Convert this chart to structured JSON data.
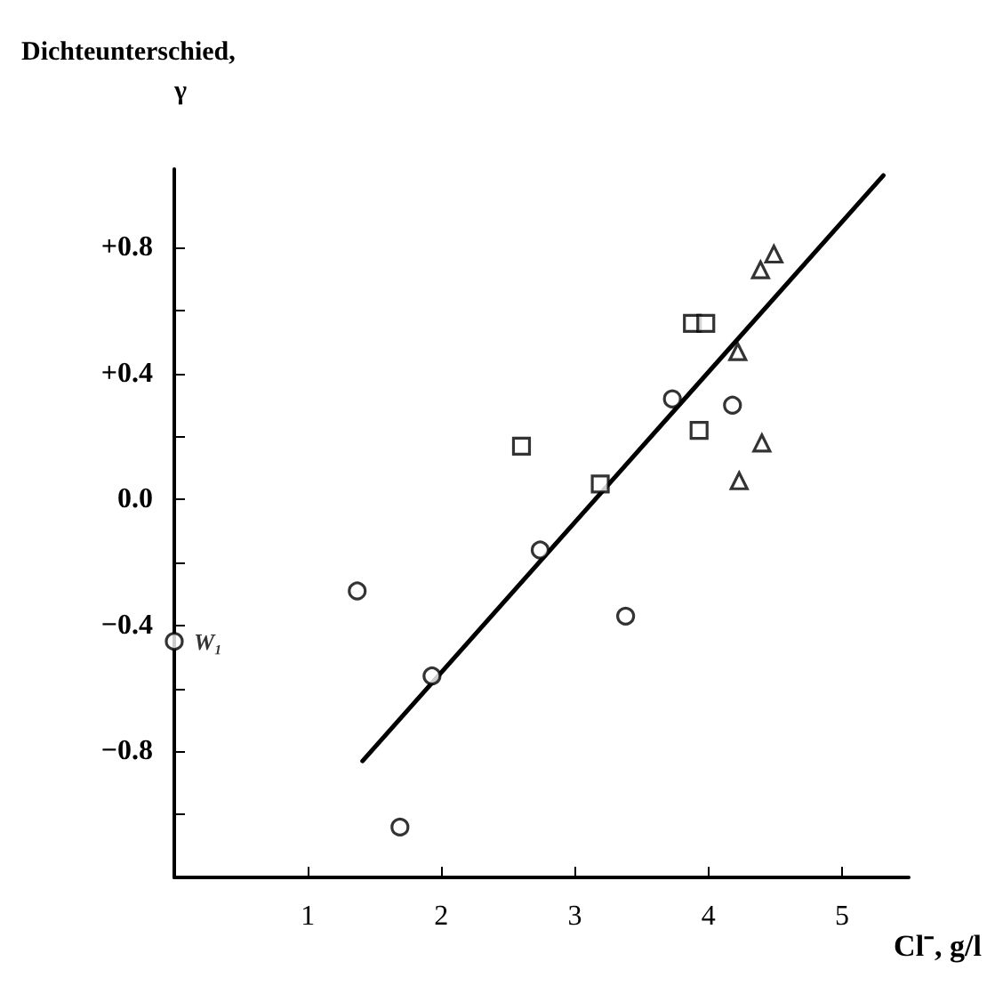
{
  "chart_data": {
    "type": "scatter",
    "xlabel": "Cl⁻, g/l",
    "ylabel": "Dichteunterschied,\nγ",
    "xlim": [
      0,
      5.5
    ],
    "xticks": [
      1,
      2,
      3,
      4,
      5
    ],
    "ylim": [
      -1.2,
      1.05
    ],
    "yticks": [
      {
        "value": 0.8,
        "label": "+0.8"
      },
      {
        "value": 0.6,
        "label": null
      },
      {
        "value": 0.4,
        "label": "+0.4"
      },
      {
        "value": 0.2,
        "label": null
      },
      {
        "value": 0,
        "label": "0.0"
      },
      {
        "value": -0.2,
        "label": null
      },
      {
        "value": -0.4,
        "label": "−0.4"
      },
      {
        "value": -0.6,
        "label": null
      },
      {
        "value": -0.8,
        "label": "−0.8"
      },
      {
        "value": -1.0,
        "label": null
      }
    ],
    "grid": false,
    "annotations": [
      {
        "text": "W₁",
        "x": 0,
        "y": -0.45
      }
    ],
    "series": [
      {
        "color": "#000000",
        "marker": "circle",
        "x": [
          0.0,
          1.37,
          1.93,
          1.69,
          3.38,
          2.74,
          3.73,
          4.18
        ],
        "values": [
          -0.45,
          -0.29,
          -0.56,
          -1.04,
          -0.37,
          -0.16,
          0.32,
          0.3
        ]
      },
      {
        "color": "#000000",
        "marker": "square",
        "x": [
          2.6,
          3.19,
          3.93,
          3.88,
          3.98
        ],
        "values": [
          0.17,
          0.05,
          0.22,
          0.56,
          0.56
        ]
      },
      {
        "color": "#000000",
        "marker": "triangle",
        "x": [
          4.49,
          4.39,
          4.22,
          4.4,
          4.23
        ],
        "values": [
          0.78,
          0.73,
          0.47,
          0.18,
          0.06
        ]
      },
      {
        "type": "line",
        "color": "#000000",
        "marker": "none",
        "line_style": "solid",
        "x": [
          1.41,
          5.31
        ],
        "values": [
          -0.83,
          1.03
        ]
      }
    ]
  }
}
